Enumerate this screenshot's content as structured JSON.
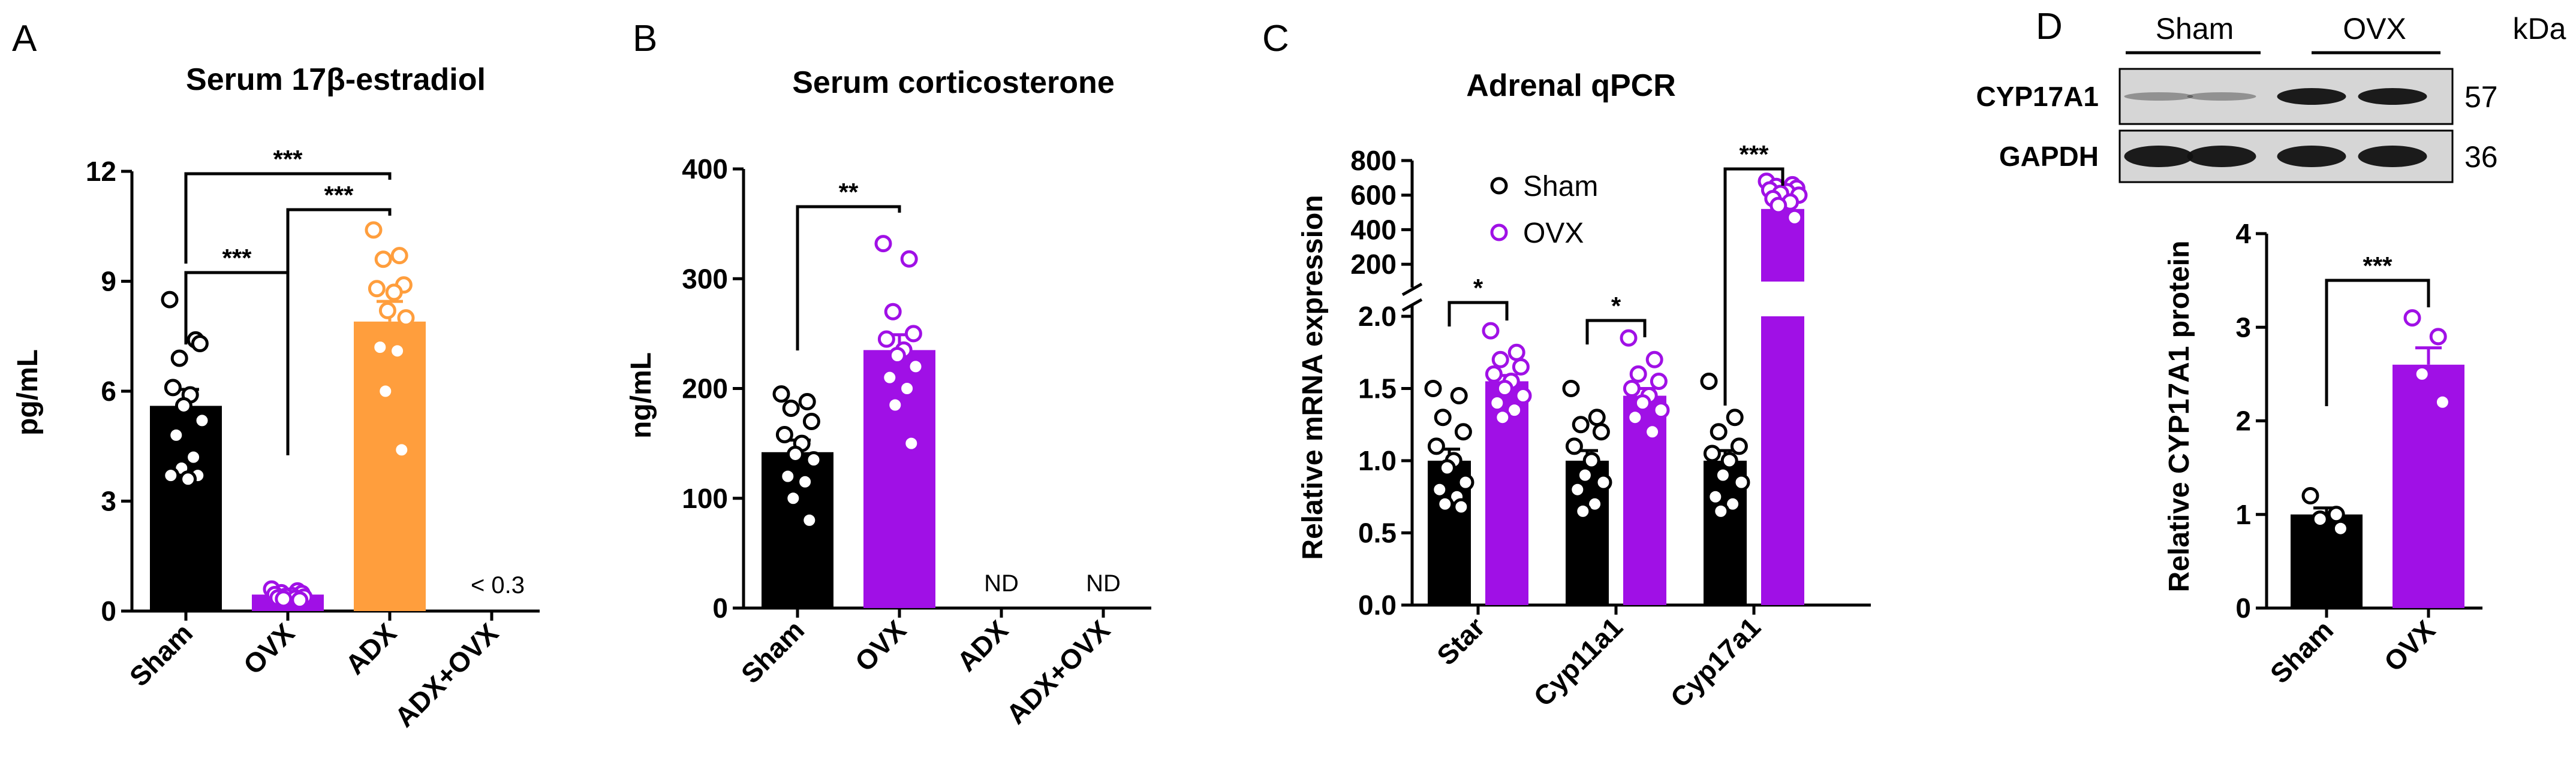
{
  "colors": {
    "sham": "#000000",
    "ovx": "#a010e6",
    "adx": "#ff9e3d",
    "axis": "#000000",
    "band": "#1a1a1a",
    "blot_bg": "#d9d9d9"
  },
  "panels": {
    "A": {
      "letter": "A",
      "title": "Serum 17β-estradiol",
      "ylabel": "pg/mL"
    },
    "B": {
      "letter": "B",
      "title": "Serum corticosterone",
      "ylabel": "ng/mL"
    },
    "C": {
      "letter": "C",
      "title": "Adrenal qPCR",
      "ylabel": "Relative mRNA expression",
      "legend": [
        "Sham",
        "OVX"
      ]
    },
    "D": {
      "letter": "D",
      "ylabel": "Relative CYP17A1 protein",
      "blot": {
        "groups": [
          "Sham",
          "OVX"
        ],
        "unit": "kDa",
        "rows": [
          {
            "label": "CYP17A1",
            "kda": "57"
          },
          {
            "label": "GAPDH",
            "kda": "36"
          }
        ]
      }
    }
  },
  "chart_data": [
    {
      "id": "A",
      "type": "bar",
      "title": "Serum 17β-estradiol",
      "ylabel": "pg/mL",
      "xlabel": "",
      "categories": [
        "Sham",
        "OVX",
        "ADX",
        "ADX+OVX"
      ],
      "ylim": [
        0,
        12
      ],
      "yticks": [
        0,
        3,
        6,
        9,
        12
      ],
      "bars": [
        {
          "category": "Sham",
          "mean": 5.6,
          "sem": 0.45,
          "color": "#000000",
          "points": [
            8.5,
            7.4,
            6.9,
            7.3,
            6.1,
            5.9,
            5.6,
            5.2,
            4.8,
            4.2,
            3.9,
            3.7,
            3.7,
            3.6
          ]
        },
        {
          "category": "OVX",
          "mean": 0.45,
          "sem": 0.05,
          "color": "#a010e6",
          "points": [
            0.6,
            0.55,
            0.5,
            0.48,
            0.45,
            0.42,
            0.4,
            0.38,
            0.36,
            0.35,
            0.33,
            0.3
          ]
        },
        {
          "category": "ADX",
          "mean": 7.9,
          "sem": 0.55,
          "color": "#ff9e3d",
          "points": [
            10.4,
            9.7,
            9.6,
            8.9,
            8.8,
            8.7,
            8.2,
            8.0,
            7.2,
            7.1,
            6.0,
            4.4
          ]
        },
        {
          "category": "ADX+OVX",
          "mean": null,
          "sem": null,
          "color": "#000000",
          "points": [],
          "annotation": "< 0.3"
        }
      ],
      "comparisons": [
        {
          "from": 0,
          "to": 2,
          "label": "***"
        },
        {
          "from": 1,
          "to": 2,
          "label": "***"
        },
        {
          "from": 0,
          "to": 1,
          "label": "***"
        }
      ]
    },
    {
      "id": "B",
      "type": "bar",
      "title": "Serum corticosterone",
      "ylabel": "ng/mL",
      "xlabel": "",
      "categories": [
        "Sham",
        "OVX",
        "ADX",
        "ADX+OVX"
      ],
      "ylim": [
        0,
        400
      ],
      "yticks": [
        0,
        100,
        200,
        300,
        400
      ],
      "bars": [
        {
          "category": "Sham",
          "mean": 142,
          "sem": 11,
          "color": "#000000",
          "points": [
            195,
            188,
            182,
            170,
            158,
            150,
            140,
            135,
            120,
            115,
            100,
            80
          ]
        },
        {
          "category": "OVX",
          "mean": 235,
          "sem": 14,
          "color": "#a010e6",
          "points": [
            332,
            318,
            270,
            250,
            245,
            235,
            230,
            220,
            210,
            200,
            185,
            150
          ]
        },
        {
          "category": "ADX",
          "mean": null,
          "sem": null,
          "color": "#000000",
          "points": [],
          "annotation": "ND"
        },
        {
          "category": "ADX+OVX",
          "mean": null,
          "sem": null,
          "color": "#000000",
          "points": [],
          "annotation": "ND"
        }
      ],
      "comparisons": [
        {
          "from": 0,
          "to": 1,
          "label": "**"
        }
      ]
    },
    {
      "id": "C",
      "type": "bar",
      "title": "Adrenal qPCR",
      "ylabel": "Relative mRNA expression",
      "xlabel": "",
      "categories": [
        "Star",
        "Cyp11a1",
        "Cyp17a1"
      ],
      "y_axis_broken": true,
      "ylim_lower": [
        0,
        2.0
      ],
      "yticks_lower": [
        0.0,
        0.5,
        1.0,
        1.5,
        2.0
      ],
      "ylim_upper": [
        100,
        800
      ],
      "yticks_upper": [
        200,
        400,
        600,
        800
      ],
      "series": [
        {
          "name": "Sham",
          "color": "#000000",
          "means": [
            1.0,
            1.0,
            1.0
          ],
          "sems": [
            0.08,
            0.07,
            0.07
          ],
          "points": [
            [
              1.5,
              1.45,
              1.3,
              1.2,
              1.1,
              1.0,
              0.95,
              0.85,
              0.8,
              0.75,
              0.7,
              0.68
            ],
            [
              1.5,
              1.3,
              1.25,
              1.2,
              1.1,
              1.0,
              0.9,
              0.85,
              0.8,
              0.7,
              0.65
            ],
            [
              1.55,
              1.3,
              1.2,
              1.1,
              1.05,
              1.0,
              0.9,
              0.85,
              0.75,
              0.7,
              0.65
            ]
          ]
        },
        {
          "name": "OVX",
          "color": "#a010e6",
          "means": [
            1.55,
            1.45,
            520
          ],
          "sems": [
            0.04,
            0.05,
            30
          ],
          "points": [
            [
              1.9,
              1.75,
              1.7,
              1.65,
              1.6,
              1.55,
              1.5,
              1.45,
              1.4,
              1.35,
              1.3
            ],
            [
              1.85,
              1.7,
              1.6,
              1.55,
              1.5,
              1.45,
              1.4,
              1.35,
              1.3,
              1.2
            ],
            [
              680,
              660,
              650,
              640,
              630,
              620,
              610,
              600,
              580,
              560,
              540,
              470
            ]
          ]
        }
      ],
      "comparisons": [
        {
          "category": "Star",
          "label": "*"
        },
        {
          "category": "Cyp11a1",
          "label": "*"
        },
        {
          "category": "Cyp17a1",
          "label": "***"
        }
      ],
      "legend_position": "top-left"
    },
    {
      "id": "D",
      "type": "bar",
      "title": "",
      "ylabel": "Relative CYP17A1 protein",
      "xlabel": "",
      "categories": [
        "Sham",
        "OVX"
      ],
      "ylim": [
        0,
        4
      ],
      "yticks": [
        0,
        1,
        2,
        3,
        4
      ],
      "bars": [
        {
          "category": "Sham",
          "mean": 1.0,
          "sem": 0.07,
          "color": "#000000",
          "points": [
            1.2,
            1.0,
            0.95,
            0.85
          ]
        },
        {
          "category": "OVX",
          "mean": 2.6,
          "sem": 0.18,
          "color": "#a010e6",
          "points": [
            3.1,
            2.9,
            2.5,
            2.2
          ]
        }
      ],
      "comparisons": [
        {
          "from": 0,
          "to": 1,
          "label": "***"
        }
      ]
    }
  ]
}
